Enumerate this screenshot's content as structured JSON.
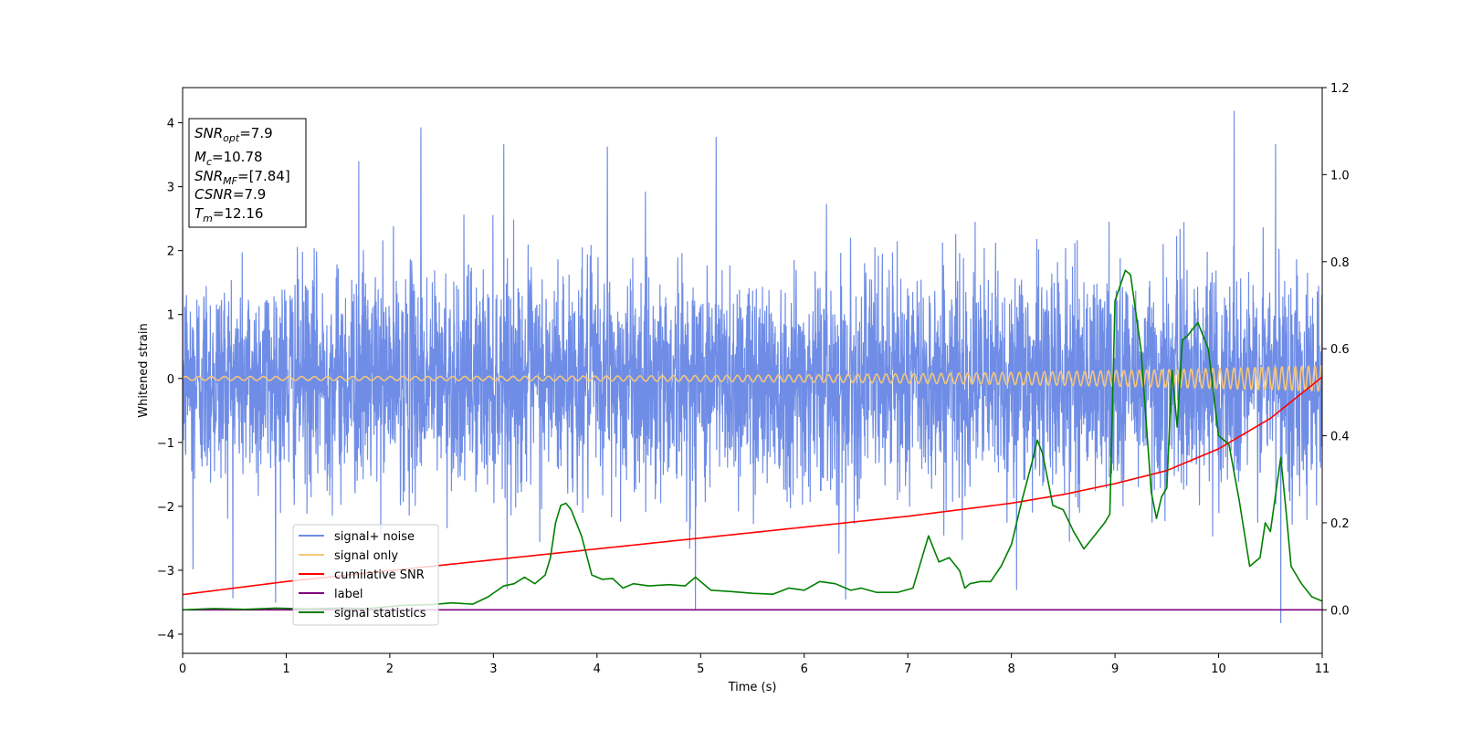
{
  "chart_data": {
    "type": "line",
    "xlabel": "Time (s)",
    "ylabel": "Whitened strain",
    "xlim": [
      0,
      11
    ],
    "ylim_left": [
      -4.3,
      4.55
    ],
    "ylim_right": [
      -0.1,
      1.2
    ],
    "x_ticks": [
      "0",
      "1",
      "2",
      "3",
      "4",
      "5",
      "6",
      "7",
      "8",
      "9",
      "10",
      "11"
    ],
    "y_left_ticks": [
      "4",
      "3",
      "2",
      "1",
      "0",
      "−1",
      "−2",
      "−3",
      "−4"
    ],
    "y_left_tick_values": [
      4,
      3,
      2,
      1,
      0,
      -1,
      -2,
      -3,
      -4
    ],
    "y_right_ticks": [
      "0.0",
      "0.2",
      "0.4",
      "0.6",
      "0.8",
      "1.0",
      "1.2"
    ],
    "y_right_tick_values": [
      0.0,
      0.2,
      0.4,
      0.6,
      0.8,
      1.0,
      1.2
    ],
    "info_box": [
      {
        "sym": "SNR",
        "sub": "opt",
        "rest": "=7.9"
      },
      {
        "sym": "M",
        "sub": "c",
        "rest": "=10.78"
      },
      {
        "sym": "SNR",
        "sub": "MF",
        "rest": "=[7.84]"
      },
      {
        "sym": "CSNR",
        "sub": "",
        "rest": "=7.9"
      },
      {
        "sym": "T",
        "sub": "m",
        "rest": "=12.16"
      }
    ],
    "legend": {
      "placement": "lower-left",
      "entries": [
        {
          "label": "signal+ noise",
          "color": "#6f8de6"
        },
        {
          "label": "signal only",
          "color": "#f5c67a"
        },
        {
          "label": "cumilative SNR",
          "color": "#ff0000"
        },
        {
          "label": "label",
          "color": "#800080"
        },
        {
          "label": "signal statistics",
          "color": "#008000"
        }
      ]
    },
    "series": [
      {
        "name": "signal+ noise",
        "axis": "left",
        "color": "#6f8de6",
        "sample_spacing_s": 0.0025,
        "noise_sigma": 0.85,
        "spikes": [
          {
            "x": 2.3,
            "y": 3.92
          },
          {
            "x": 3.1,
            "y": 3.66
          },
          {
            "x": 4.1,
            "y": 3.62
          },
          {
            "x": 5.15,
            "y": 3.77
          },
          {
            "x": 10.15,
            "y": 4.18
          },
          {
            "x": 10.55,
            "y": 3.66
          },
          {
            "x": 1.7,
            "y": 3.39
          },
          {
            "x": 4.95,
            "y": -3.6
          },
          {
            "x": 10.6,
            "y": -3.82
          },
          {
            "x": 0.1,
            "y": -2.98
          },
          {
            "x": 6.4,
            "y": -3.45
          },
          {
            "x": 8.05,
            "y": -3.3
          }
        ]
      },
      {
        "name": "signal only",
        "axis": "left",
        "color": "#f5c67a",
        "amplitude_start": 0.03,
        "amplitude_end": 0.2,
        "frequency_start_hz": 8,
        "frequency_end_hz": 16
      },
      {
        "name": "cumilative SNR",
        "axis": "right",
        "color": "#ff0000",
        "x": [
          0,
          1,
          2,
          3,
          4,
          5,
          6,
          7,
          8,
          8.5,
          9,
          9.5,
          10,
          10.5,
          11
        ],
        "y": [
          0.035,
          0.065,
          0.09,
          0.115,
          0.14,
          0.165,
          0.19,
          0.215,
          0.245,
          0.265,
          0.29,
          0.32,
          0.37,
          0.44,
          0.535
        ]
      },
      {
        "name": "label",
        "axis": "right",
        "color": "#800080",
        "x": [
          0,
          11
        ],
        "y": [
          0.0,
          0.0
        ]
      },
      {
        "name": "signal statistics",
        "axis": "right",
        "color": "#008000",
        "x": [
          0,
          0.3,
          0.6,
          0.9,
          1.2,
          1.5,
          1.8,
          2.1,
          2.4,
          2.6,
          2.8,
          2.95,
          3.1,
          3.2,
          3.3,
          3.4,
          3.5,
          3.55,
          3.6,
          3.65,
          3.7,
          3.75,
          3.85,
          3.95,
          4.05,
          4.15,
          4.25,
          4.35,
          4.5,
          4.7,
          4.85,
          4.95,
          5.1,
          5.3,
          5.5,
          5.7,
          5.85,
          6.0,
          6.15,
          6.3,
          6.45,
          6.55,
          6.7,
          6.9,
          7.05,
          7.2,
          7.3,
          7.4,
          7.5,
          7.55,
          7.6,
          7.7,
          7.8,
          7.9,
          8.0,
          8.1,
          8.2,
          8.25,
          8.3,
          8.4,
          8.5,
          8.6,
          8.7,
          8.8,
          8.9,
          8.95,
          9.0,
          9.1,
          9.15,
          9.25,
          9.35,
          9.4,
          9.45,
          9.5,
          9.55,
          9.6,
          9.65,
          9.7,
          9.8,
          9.9,
          10.0,
          10.1,
          10.2,
          10.3,
          10.4,
          10.45,
          10.5,
          10.6,
          10.65,
          10.7,
          10.8,
          10.9,
          11.0
        ],
        "y": [
          0.0,
          0.003,
          0.001,
          0.004,
          0.002,
          0.004,
          0.003,
          0.01,
          0.012,
          0.016,
          0.013,
          0.03,
          0.055,
          0.06,
          0.075,
          0.06,
          0.08,
          0.12,
          0.2,
          0.24,
          0.245,
          0.23,
          0.17,
          0.08,
          0.07,
          0.072,
          0.05,
          0.06,
          0.055,
          0.058,
          0.055,
          0.075,
          0.045,
          0.042,
          0.038,
          0.036,
          0.05,
          0.045,
          0.065,
          0.06,
          0.045,
          0.05,
          0.04,
          0.04,
          0.05,
          0.17,
          0.11,
          0.12,
          0.09,
          0.05,
          0.06,
          0.065,
          0.065,
          0.1,
          0.15,
          0.25,
          0.34,
          0.39,
          0.36,
          0.24,
          0.23,
          0.18,
          0.14,
          0.17,
          0.2,
          0.22,
          0.71,
          0.78,
          0.77,
          0.6,
          0.27,
          0.21,
          0.26,
          0.28,
          0.55,
          0.42,
          0.62,
          0.63,
          0.66,
          0.6,
          0.4,
          0.38,
          0.25,
          0.1,
          0.12,
          0.2,
          0.18,
          0.35,
          0.23,
          0.1,
          0.06,
          0.03,
          0.02
        ]
      }
    ]
  }
}
